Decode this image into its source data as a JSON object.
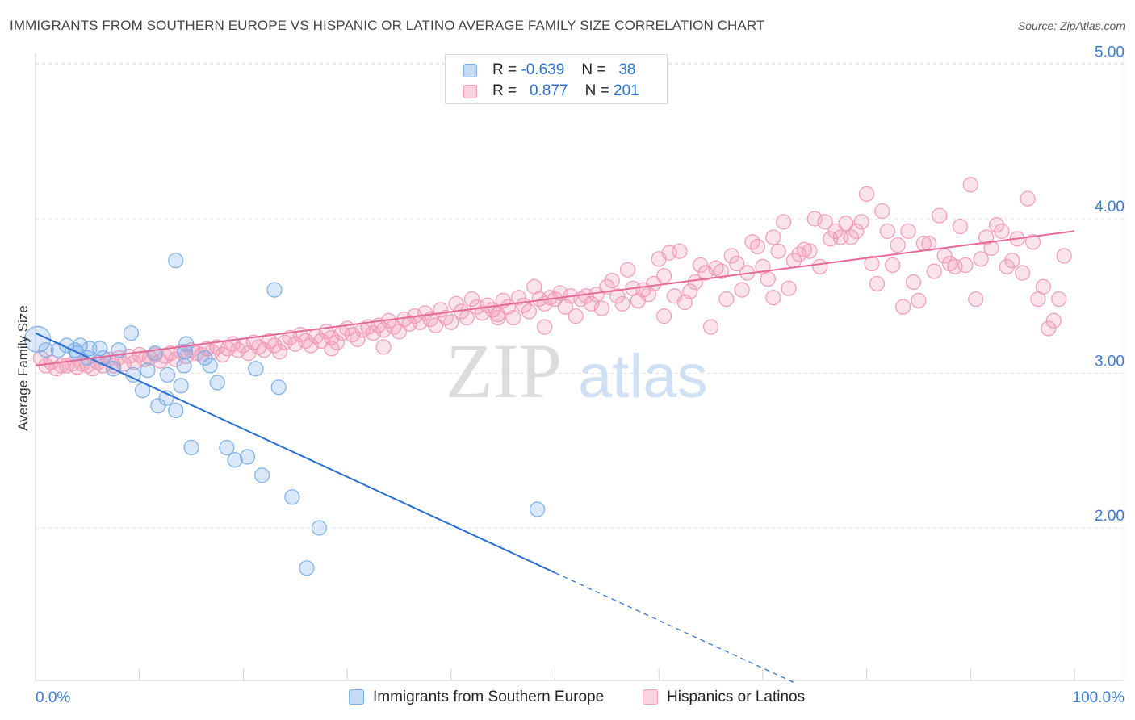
{
  "header": {
    "title": "IMMIGRANTS FROM SOUTHERN EUROPE VS HISPANIC OR LATINO AVERAGE FAMILY SIZE CORRELATION CHART",
    "source": "Source: ZipAtlas.com"
  },
  "watermark": {
    "zip": "ZIP",
    "atlas": "atlas"
  },
  "stats_legend": {
    "rows": [
      {
        "r_label": "R =",
        "r_value": "-0.639",
        "n_label": "N =",
        "n_value": "38",
        "color": "#7aaee8"
      },
      {
        "r_label": "R =",
        "r_value": "0.877",
        "n_label": "N =",
        "n_value": "201",
        "color": "#f29ab5"
      }
    ]
  },
  "bottom_legend": {
    "items": [
      {
        "label": "Immigrants from Southern Europe",
        "color": "#7aaee8"
      },
      {
        "label": "Hispanics or Latinos",
        "color": "#f29ab5"
      }
    ]
  },
  "chart_data": {
    "type": "scatter",
    "title": "IMMIGRANTS FROM SOUTHERN EUROPE VS HISPANIC OR LATINO AVERAGE FAMILY SIZE CORRELATION CHART",
    "xlabel": "",
    "ylabel": "Average Family Size",
    "x_range": [
      0,
      100
    ],
    "y_range": [
      1.0,
      5.1
    ],
    "x_tick_labels": [
      "0.0%",
      "100.0%"
    ],
    "y_ticks": [
      2.0,
      3.0,
      4.0,
      5.0
    ],
    "y_tick_labels": [
      "2.00",
      "3.00",
      "4.00",
      "5.00"
    ],
    "grid": true,
    "legend_position": "bottom",
    "series": [
      {
        "name": "Immigrants from Southern Europe",
        "color": "#7aaee8",
        "line_color": "#2a6fd0",
        "trend": {
          "x0": 0,
          "y0": 3.26,
          "x1": 50,
          "y1": 1.71,
          "dashed_to_x": 73,
          "dashed_to_y": 1.0
        },
        "points": [
          [
            0.2,
            3.22
          ],
          [
            1,
            3.15
          ],
          [
            2.2,
            3.15
          ],
          [
            3,
            3.18
          ],
          [
            4.3,
            3.18
          ],
          [
            5.2,
            3.16
          ],
          [
            4,
            3.13
          ],
          [
            3.8,
            3.15
          ],
          [
            6.2,
            3.16
          ],
          [
            5,
            3.1
          ],
          [
            7.5,
            3.03
          ],
          [
            8,
            3.15
          ],
          [
            6.5,
            3.1
          ],
          [
            9.2,
            3.26
          ],
          [
            10.8,
            3.02
          ],
          [
            11.5,
            3.13
          ],
          [
            9.4,
            2.99
          ],
          [
            10.3,
            2.89
          ],
          [
            12.7,
            2.99
          ],
          [
            11.8,
            2.79
          ],
          [
            12.6,
            2.84
          ],
          [
            13.5,
            2.76
          ],
          [
            14,
            2.92
          ],
          [
            15,
            2.52
          ],
          [
            14.5,
            3.19
          ],
          [
            14.4,
            3.14
          ],
          [
            16.3,
            3.1
          ],
          [
            16.8,
            3.05
          ],
          [
            17.5,
            2.94
          ],
          [
            18.4,
            2.52
          ],
          [
            19.2,
            2.44
          ],
          [
            20.4,
            2.46
          ],
          [
            21.2,
            3.03
          ],
          [
            21.8,
            2.34
          ],
          [
            23.4,
            2.91
          ],
          [
            24.7,
            2.2
          ],
          [
            26.1,
            1.74
          ],
          [
            27.3,
            2.0
          ],
          [
            48.3,
            2.12
          ],
          [
            13.5,
            3.73
          ],
          [
            23,
            3.54
          ],
          [
            14.3,
            3.05
          ]
        ]
      },
      {
        "name": "Hispanics or Latinos",
        "color": "#f29ab5",
        "line_color": "#e5689a",
        "trend": {
          "x0": 0,
          "y0": 3.05,
          "x1": 100,
          "y1": 3.92
        },
        "points": [
          [
            0.5,
            3.1
          ],
          [
            1,
            3.05
          ],
          [
            1.5,
            3.07
          ],
          [
            2,
            3.03
          ],
          [
            2.5,
            3.05
          ],
          [
            3,
            3.05
          ],
          [
            3.5,
            3.06
          ],
          [
            4,
            3.04
          ],
          [
            4.5,
            3.06
          ],
          [
            5,
            3.05
          ],
          [
            5.5,
            3.03
          ],
          [
            6,
            3.07
          ],
          [
            6.5,
            3.05
          ],
          [
            7,
            3.09
          ],
          [
            7.5,
            3.05
          ],
          [
            8,
            3.1
          ],
          [
            8.5,
            3.06
          ],
          [
            9,
            3.11
          ],
          [
            9.5,
            3.07
          ],
          [
            10,
            3.12
          ],
          [
            10.5,
            3.09
          ],
          [
            11,
            3.1
          ],
          [
            11.5,
            3.12
          ],
          [
            12,
            3.08
          ],
          [
            12.5,
            3.11
          ],
          [
            13,
            3.13
          ],
          [
            13.5,
            3.09
          ],
          [
            14,
            3.14
          ],
          [
            14.5,
            3.11
          ],
          [
            15,
            3.15
          ],
          [
            15.5,
            3.13
          ],
          [
            16,
            3.12
          ],
          [
            16.5,
            3.16
          ],
          [
            17,
            3.14
          ],
          [
            17.5,
            3.17
          ],
          [
            18,
            3.12
          ],
          [
            18.5,
            3.16
          ],
          [
            19,
            3.19
          ],
          [
            19.5,
            3.15
          ],
          [
            20,
            3.18
          ],
          [
            20.5,
            3.13
          ],
          [
            21,
            3.2
          ],
          [
            21.5,
            3.17
          ],
          [
            22,
            3.15
          ],
          [
            22.5,
            3.21
          ],
          [
            23,
            3.18
          ],
          [
            23.5,
            3.14
          ],
          [
            24,
            3.2
          ],
          [
            24.5,
            3.23
          ],
          [
            25,
            3.19
          ],
          [
            25.5,
            3.25
          ],
          [
            26,
            3.21
          ],
          [
            26.5,
            3.18
          ],
          [
            27,
            3.24
          ],
          [
            27.5,
            3.21
          ],
          [
            28,
            3.27
          ],
          [
            28.5,
            3.23
          ],
          [
            29,
            3.2
          ],
          [
            29.5,
            3.26
          ],
          [
            30,
            3.29
          ],
          [
            30.5,
            3.25
          ],
          [
            31,
            3.22
          ],
          [
            31.5,
            3.28
          ],
          [
            32,
            3.3
          ],
          [
            32.5,
            3.26
          ],
          [
            33,
            3.31
          ],
          [
            33.5,
            3.28
          ],
          [
            34,
            3.34
          ],
          [
            34.5,
            3.3
          ],
          [
            35,
            3.27
          ],
          [
            35.5,
            3.35
          ],
          [
            36,
            3.32
          ],
          [
            36.5,
            3.37
          ],
          [
            37,
            3.33
          ],
          [
            37.5,
            3.39
          ],
          [
            38,
            3.35
          ],
          [
            38.5,
            3.31
          ],
          [
            39,
            3.41
          ],
          [
            39.5,
            3.36
          ],
          [
            40,
            3.33
          ],
          [
            40.5,
            3.45
          ],
          [
            41,
            3.4
          ],
          [
            41.5,
            3.36
          ],
          [
            42,
            3.48
          ],
          [
            42.5,
            3.43
          ],
          [
            43,
            3.39
          ],
          [
            43.5,
            3.44
          ],
          [
            44,
            3.41
          ],
          [
            44.5,
            3.38
          ],
          [
            45,
            3.47
          ],
          [
            45.5,
            3.43
          ],
          [
            46,
            3.36
          ],
          [
            46.5,
            3.49
          ],
          [
            47,
            3.44
          ],
          [
            47.5,
            3.4
          ],
          [
            48,
            3.56
          ],
          [
            48.5,
            3.48
          ],
          [
            49,
            3.45
          ],
          [
            49.5,
            3.49
          ],
          [
            50,
            3.48
          ],
          [
            50.5,
            3.52
          ],
          [
            51,
            3.43
          ],
          [
            51.5,
            3.5
          ],
          [
            52,
            3.37
          ],
          [
            52.5,
            3.48
          ],
          [
            53,
            3.5
          ],
          [
            53.5,
            3.45
          ],
          [
            54,
            3.51
          ],
          [
            54.5,
            3.42
          ],
          [
            55,
            3.56
          ],
          [
            55.5,
            3.6
          ],
          [
            56,
            3.5
          ],
          [
            56.5,
            3.45
          ],
          [
            57,
            3.67
          ],
          [
            57.5,
            3.55
          ],
          [
            58,
            3.47
          ],
          [
            58.5,
            3.54
          ],
          [
            59,
            3.51
          ],
          [
            59.5,
            3.58
          ],
          [
            60,
            3.74
          ],
          [
            60.5,
            3.63
          ],
          [
            61,
            3.78
          ],
          [
            61.5,
            3.5
          ],
          [
            62,
            3.79
          ],
          [
            62.5,
            3.46
          ],
          [
            63,
            3.53
          ],
          [
            63.5,
            3.59
          ],
          [
            64,
            3.7
          ],
          [
            64.5,
            3.65
          ],
          [
            65,
            3.3
          ],
          [
            65.5,
            3.68
          ],
          [
            66,
            3.66
          ],
          [
            66.5,
            3.48
          ],
          [
            67,
            3.76
          ],
          [
            67.5,
            3.71
          ],
          [
            68,
            3.54
          ],
          [
            68.5,
            3.65
          ],
          [
            69,
            3.85
          ],
          [
            69.5,
            3.82
          ],
          [
            70,
            3.69
          ],
          [
            70.5,
            3.61
          ],
          [
            71,
            3.88
          ],
          [
            71.5,
            3.79
          ],
          [
            72,
            3.98
          ],
          [
            72.5,
            3.55
          ],
          [
            73,
            3.73
          ],
          [
            73.5,
            3.77
          ],
          [
            74,
            3.8
          ],
          [
            74.5,
            3.79
          ],
          [
            75,
            4.0
          ],
          [
            75.5,
            3.69
          ],
          [
            76,
            3.98
          ],
          [
            76.5,
            3.87
          ],
          [
            77,
            3.92
          ],
          [
            77.5,
            3.88
          ],
          [
            78,
            3.97
          ],
          [
            78.5,
            3.88
          ],
          [
            79,
            3.92
          ],
          [
            79.5,
            3.98
          ],
          [
            80,
            4.16
          ],
          [
            80.5,
            3.71
          ],
          [
            81,
            3.58
          ],
          [
            81.5,
            4.05
          ],
          [
            82,
            3.92
          ],
          [
            82.5,
            3.7
          ],
          [
            83,
            3.83
          ],
          [
            83.5,
            3.43
          ],
          [
            84,
            3.92
          ],
          [
            84.5,
            3.59
          ],
          [
            85,
            3.47
          ],
          [
            85.5,
            3.84
          ],
          [
            86,
            3.84
          ],
          [
            86.5,
            3.66
          ],
          [
            87,
            4.02
          ],
          [
            87.5,
            3.76
          ],
          [
            88,
            3.71
          ],
          [
            88.5,
            3.69
          ],
          [
            89,
            3.95
          ],
          [
            89.5,
            3.7
          ],
          [
            90,
            4.22
          ],
          [
            90.5,
            3.48
          ],
          [
            91,
            3.74
          ],
          [
            91.5,
            3.88
          ],
          [
            92,
            3.81
          ],
          [
            92.5,
            3.96
          ],
          [
            93,
            3.92
          ],
          [
            93.5,
            3.69
          ],
          [
            94,
            3.73
          ],
          [
            94.5,
            3.87
          ],
          [
            95,
            3.65
          ],
          [
            95.5,
            4.13
          ],
          [
            96,
            3.85
          ],
          [
            96.5,
            3.48
          ],
          [
            97,
            3.56
          ],
          [
            97.5,
            3.29
          ],
          [
            98,
            3.34
          ],
          [
            98.5,
            3.48
          ],
          [
            99,
            3.76
          ],
          [
            28.5,
            3.16
          ],
          [
            33.5,
            3.17
          ],
          [
            44.5,
            3.36
          ],
          [
            49,
            3.3
          ],
          [
            60.5,
            3.37
          ],
          [
            71,
            3.49
          ]
        ]
      }
    ]
  }
}
